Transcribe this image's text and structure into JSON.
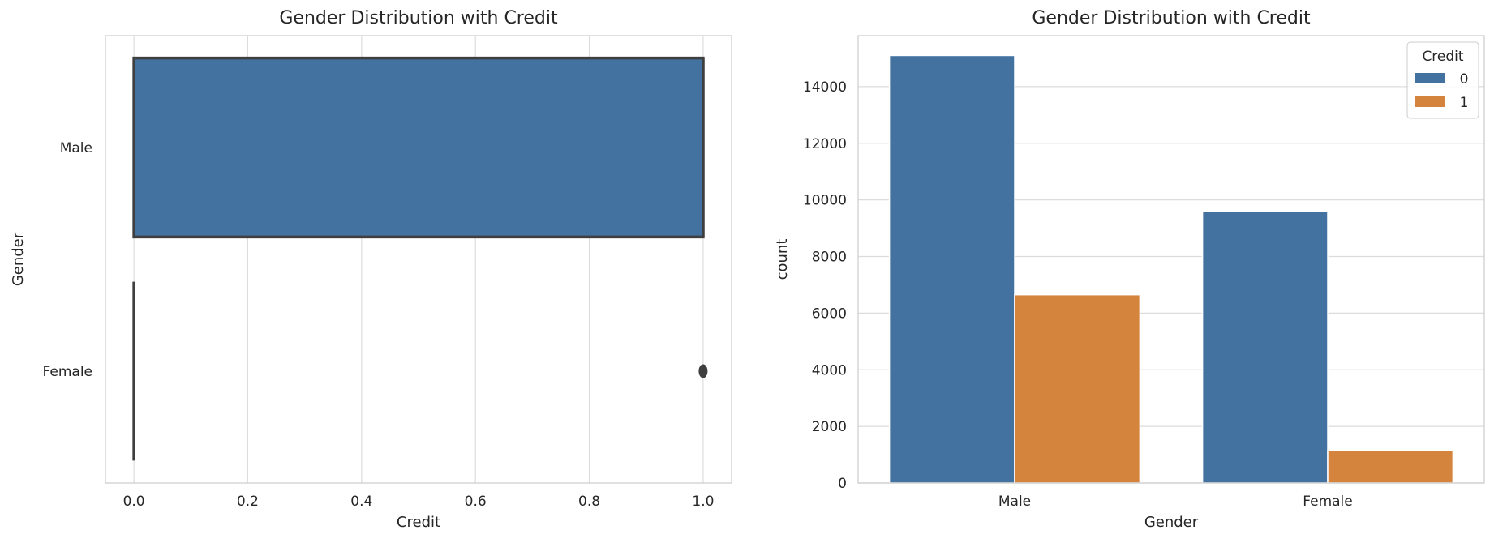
{
  "chart_data": [
    {
      "type": "box",
      "title": "Gender Distribution with Credit",
      "xlabel": "Credit",
      "ylabel": "Gender",
      "categories": [
        "Male",
        "Female"
      ],
      "xlim": [
        -0.05,
        1.05
      ],
      "xticks": [
        0.0,
        0.2,
        0.4,
        0.6,
        0.8,
        1.0
      ],
      "xtick_labels": [
        "0.0",
        "0.2",
        "0.4",
        "0.6",
        "0.8",
        "1.0"
      ],
      "grid": true,
      "boxes": [
        {
          "name": "Male",
          "q1": 0.0,
          "median": 1.0,
          "q3": 1.0,
          "whisker_low": 0.0,
          "whisker_high": 1.0,
          "outliers": []
        },
        {
          "name": "Female",
          "q1": 0.0,
          "median": 0.0,
          "q3": 0.0,
          "whisker_low": 0.0,
          "whisker_high": 0.0,
          "outliers": [
            1.0
          ]
        }
      ],
      "color": "#4472a0"
    },
    {
      "type": "bar",
      "title": "Gender Distribution with Credit",
      "xlabel": "Gender",
      "ylabel": "count",
      "categories": [
        "Male",
        "Female"
      ],
      "ylim": [
        0,
        15800
      ],
      "yticks": [
        0,
        2000,
        4000,
        6000,
        8000,
        10000,
        12000,
        14000
      ],
      "ytick_labels": [
        "0",
        "2000",
        "4000",
        "6000",
        "8000",
        "10000",
        "12000",
        "14000"
      ],
      "grid": true,
      "legend": {
        "title": "Credit",
        "position": "top-right"
      },
      "series": [
        {
          "name": "0",
          "color": "#4472a0",
          "values": [
            15100,
            9600
          ]
        },
        {
          "name": "1",
          "color": "#d5843e",
          "values": [
            6650,
            1150
          ]
        }
      ]
    }
  ]
}
